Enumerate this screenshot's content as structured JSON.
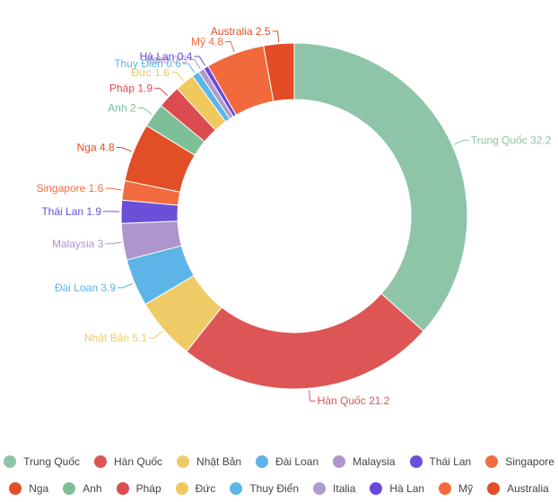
{
  "chart_data": {
    "type": "donut",
    "series": [
      {
        "name": "Trung Quốc",
        "value": 32.2,
        "label": "Trung Quốc 32.2",
        "color": "#8ec4a8"
      },
      {
        "name": "Hàn Quốc",
        "value": 21.2,
        "label": "Hàn Quốc 21.2",
        "color": "#dd5555"
      },
      {
        "name": "Nhật Bản",
        "value": 5.1,
        "label": "Nhật Bản 5.1",
        "color": "#efcb68"
      },
      {
        "name": "Đài Loan",
        "value": 3.9,
        "label": "Đài Loan 3.9",
        "color": "#5db4e6"
      },
      {
        "name": "Malaysia",
        "value": 3,
        "label": "Malaysia 3",
        "color": "#ae96cc"
      },
      {
        "name": "Thái Lan",
        "value": 1.9,
        "label": "Thái Lan 1.9",
        "color": "#6b4fd8"
      },
      {
        "name": "Singapore",
        "value": 1.6,
        "label": "Singapore 1.6",
        "color": "#f26c40"
      },
      {
        "name": "Nga",
        "value": 4.8,
        "label": "Nga 4.8",
        "color": "#e24e26"
      },
      {
        "name": "Anh",
        "value": 2,
        "label": "Anh 2",
        "color": "#7fbf97"
      },
      {
        "name": "Pháp",
        "value": 1.9,
        "label": "Pháp 1.9",
        "color": "#dc4b50"
      },
      {
        "name": "Đức",
        "value": 1.6,
        "label": "Đức 1.6",
        "color": "#f1c85e"
      },
      {
        "name": "Thuy Điển",
        "value": 0.6,
        "label": "Thuy Điển 0.6",
        "color": "#5ab6e8"
      },
      {
        "name": "Italia",
        "value": 0.5,
        "label": "Italia 0.5",
        "color": "#b09bcf"
      },
      {
        "name": "Hà Lan",
        "value": 0.4,
        "label": "Hà Lan 0.4",
        "color": "#6a48da"
      },
      {
        "name": "Mỹ",
        "value": 4.8,
        "label": "Mỹ 4.8",
        "color": "#f26a3c"
      },
      {
        "name": "Australia",
        "value": 2.5,
        "label": "Australia 2.5",
        "color": "#e34c24"
      }
    ],
    "legend_placement": "bottom"
  }
}
